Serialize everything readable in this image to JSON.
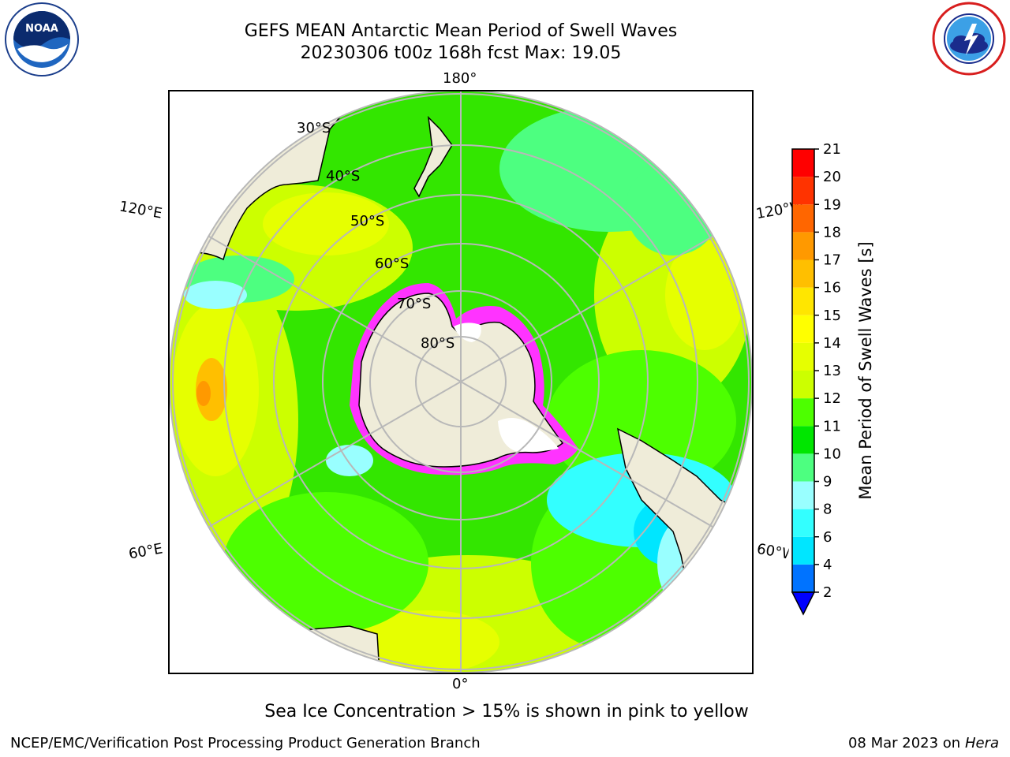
{
  "header": {
    "title_line1": "GEFS MEAN Antarctic Mean Period of Swell Waves",
    "title_line2": "20230306 t00z 168h fcst   Max: 19.05"
  },
  "logos": {
    "left": {
      "name": "noaa-logo",
      "text": "NOAA",
      "ring_text": "NATIONAL OCEANIC AND ATMOSPHERIC ADMINISTRATION • U.S. DEPARTMENT OF COMMERCE"
    },
    "right": {
      "name": "nws-logo",
      "ring_text": "NATIONAL WEATHER SERVICE"
    }
  },
  "map": {
    "projection": "south-polar-stereographic",
    "longitude_labels": {
      "top": "180°",
      "bottom": "0°",
      "left_upper": "120°E",
      "left_lower": "60°E",
      "right_upper": "120°W",
      "right_lower": "60°W"
    },
    "latitude_labels": [
      "30°S",
      "40°S",
      "50°S",
      "60°S",
      "70°S",
      "80°S"
    ],
    "colors": {
      "ocean_base": "#33e600",
      "land": "#efecd9",
      "ice_edge": "#ff33ff",
      "grid": "#b8b8b8"
    }
  },
  "colorbar": {
    "title": "Mean Period of Swell Waves [s]",
    "ticks": [
      "2",
      "4",
      "6",
      "8",
      "9",
      "10",
      "11",
      "12",
      "13",
      "14",
      "15",
      "16",
      "17",
      "18",
      "19",
      "20",
      "21"
    ],
    "colors": [
      "#0073ff",
      "#00e6ff",
      "#33ffff",
      "#99ffff",
      "#4dff80",
      "#00e600",
      "#4dff00",
      "#ccff00",
      "#e6ff00",
      "#ffff00",
      "#ffe600",
      "#ffbf00",
      "#ff9900",
      "#ff6600",
      "#ff3300",
      "#ff0000"
    ],
    "under_color": "#0000ff",
    "extend": "min"
  },
  "note": "Sea Ice Concentration > 15% is shown in pink to yellow",
  "footer": {
    "left": "NCEP/EMC/Verification Post Processing Product Generation Branch",
    "right_date": "08 Mar 2023 on",
    "right_host": "Hera"
  }
}
